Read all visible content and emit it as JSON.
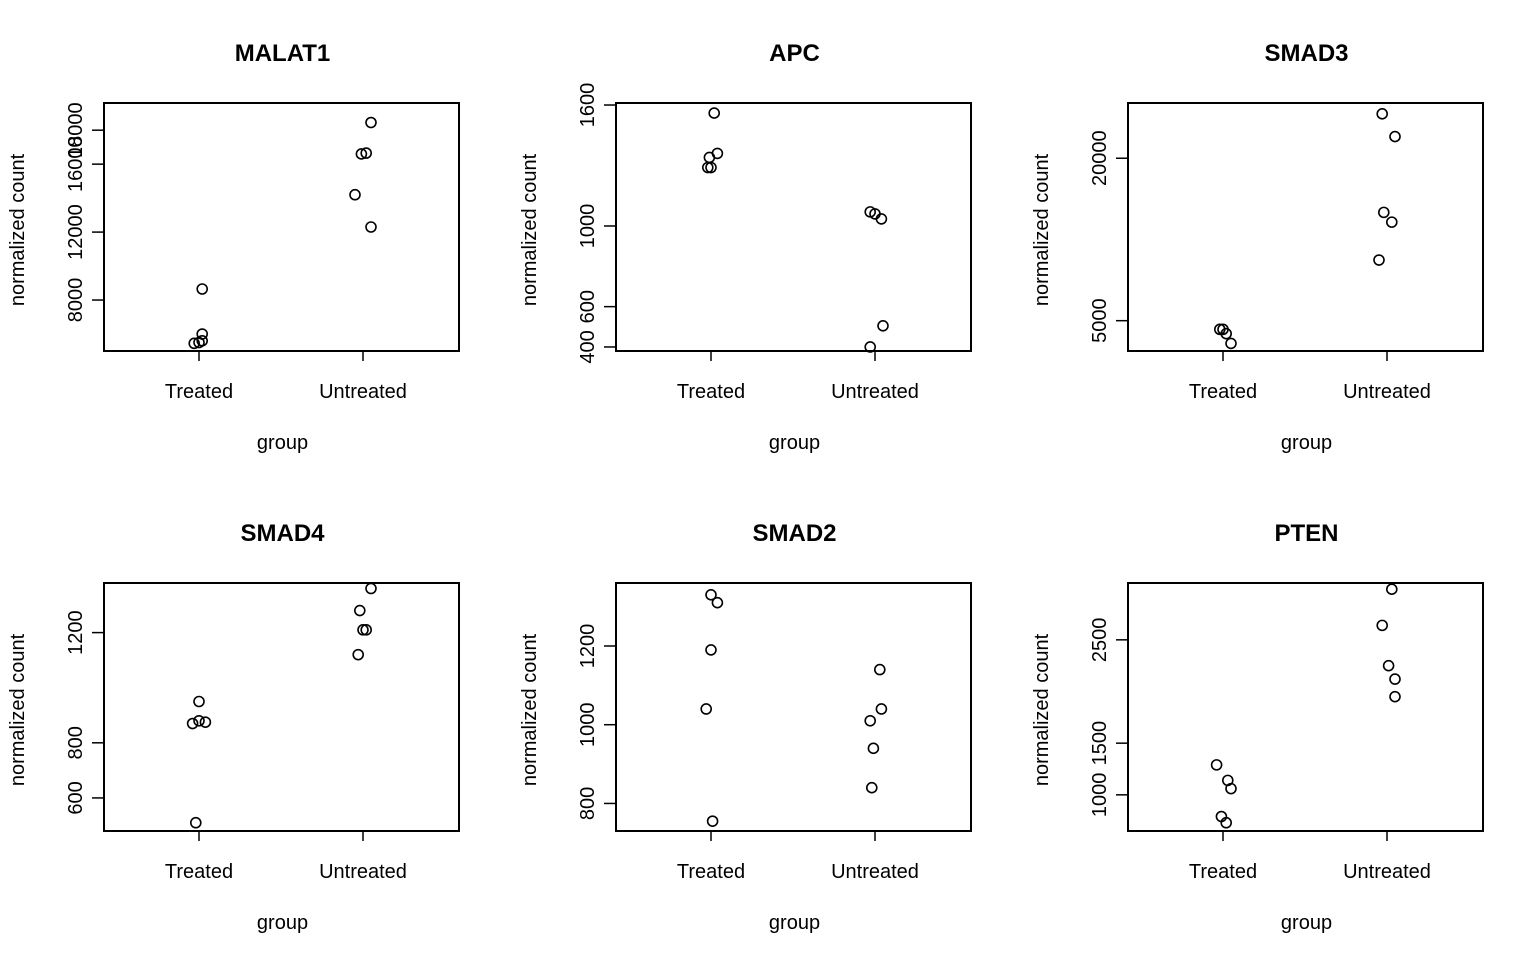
{
  "chart_data": [
    {
      "type": "scatter",
      "title": "MALAT1",
      "xlabel": "group",
      "ylabel": "normalized count",
      "categories": [
        "Treated",
        "Untreated"
      ],
      "ylim": [
        5000,
        19600
      ],
      "yticks": [
        8000,
        12000,
        16000,
        18000
      ],
      "ytick_labels": [
        "8000",
        "12000",
        "16000",
        "18000"
      ],
      "grid": false,
      "points": [
        {
          "group": "Treated",
          "jitter": -0.03,
          "y": 5450
        },
        {
          "group": "Treated",
          "jitter": 0.0,
          "y": 5500
        },
        {
          "group": "Treated",
          "jitter": 0.02,
          "y": 5600
        },
        {
          "group": "Treated",
          "jitter": 0.02,
          "y": 6000
        },
        {
          "group": "Treated",
          "jitter": 0.02,
          "y": 8650
        },
        {
          "group": "Untreated",
          "jitter": -0.05,
          "y": 14200
        },
        {
          "group": "Untreated",
          "jitter": -0.01,
          "y": 16600
        },
        {
          "group": "Untreated",
          "jitter": 0.02,
          "y": 16650
        },
        {
          "group": "Untreated",
          "jitter": 0.05,
          "y": 12300
        },
        {
          "group": "Untreated",
          "jitter": 0.05,
          "y": 18450
        }
      ]
    },
    {
      "type": "scatter",
      "title": "APC",
      "xlabel": "group",
      "ylabel": "normalized count",
      "categories": [
        "Treated",
        "Untreated"
      ],
      "ylim": [
        380,
        1610
      ],
      "yticks": [
        400,
        600,
        1000,
        1600
      ],
      "ytick_labels": [
        "400",
        "600",
        "1000",
        "1600"
      ],
      "grid": false,
      "points": [
        {
          "group": "Treated",
          "jitter": -0.02,
          "y": 1290
        },
        {
          "group": "Treated",
          "jitter": 0.0,
          "y": 1290
        },
        {
          "group": "Treated",
          "jitter": -0.01,
          "y": 1340
        },
        {
          "group": "Treated",
          "jitter": 0.04,
          "y": 1360
        },
        {
          "group": "Treated",
          "jitter": 0.02,
          "y": 1560
        },
        {
          "group": "Untreated",
          "jitter": -0.03,
          "y": 1070
        },
        {
          "group": "Untreated",
          "jitter": 0.0,
          "y": 1060
        },
        {
          "group": "Untreated",
          "jitter": 0.04,
          "y": 1035
        },
        {
          "group": "Untreated",
          "jitter": 0.05,
          "y": 505
        },
        {
          "group": "Untreated",
          "jitter": -0.03,
          "y": 400
        }
      ]
    },
    {
      "type": "scatter",
      "title": "SMAD3",
      "xlabel": "group",
      "ylabel": "normalized count",
      "categories": [
        "Treated",
        "Untreated"
      ],
      "ylim": [
        2200,
        25100
      ],
      "yticks": [
        5000,
        20000
      ],
      "ytick_labels": [
        "5000",
        "20000"
      ],
      "grid": false,
      "points": [
        {
          "group": "Treated",
          "jitter": -0.02,
          "y": 4200
        },
        {
          "group": "Treated",
          "jitter": 0.0,
          "y": 4200
        },
        {
          "group": "Treated",
          "jitter": 0.02,
          "y": 3800
        },
        {
          "group": "Treated",
          "jitter": 0.05,
          "y": 2900
        },
        {
          "group": "Untreated",
          "jitter": -0.05,
          "y": 10600
        },
        {
          "group": "Untreated",
          "jitter": -0.02,
          "y": 15000
        },
        {
          "group": "Untreated",
          "jitter": 0.03,
          "y": 14100
        },
        {
          "group": "Untreated",
          "jitter": -0.03,
          "y": 24100
        },
        {
          "group": "Untreated",
          "jitter": 0.05,
          "y": 22000
        }
      ]
    },
    {
      "type": "scatter",
      "title": "SMAD4",
      "xlabel": "group",
      "ylabel": "normalized count",
      "categories": [
        "Treated",
        "Untreated"
      ],
      "ylim": [
        480,
        1380
      ],
      "yticks": [
        600,
        800,
        1200
      ],
      "ytick_labels": [
        "600",
        "800",
        "1200"
      ],
      "grid": false,
      "points": [
        {
          "group": "Treated",
          "jitter": -0.04,
          "y": 870
        },
        {
          "group": "Treated",
          "jitter": 0.0,
          "y": 950
        },
        {
          "group": "Treated",
          "jitter": 0.0,
          "y": 880
        },
        {
          "group": "Treated",
          "jitter": 0.04,
          "y": 875
        },
        {
          "group": "Treated",
          "jitter": -0.02,
          "y": 510
        },
        {
          "group": "Untreated",
          "jitter": -0.02,
          "y": 1280
        },
        {
          "group": "Untreated",
          "jitter": 0.0,
          "y": 1210
        },
        {
          "group": "Untreated",
          "jitter": 0.02,
          "y": 1210
        },
        {
          "group": "Untreated",
          "jitter": -0.03,
          "y": 1120
        },
        {
          "group": "Untreated",
          "jitter": 0.05,
          "y": 1360
        }
      ]
    },
    {
      "type": "scatter",
      "title": "SMAD2",
      "xlabel": "group",
      "ylabel": "normalized count",
      "categories": [
        "Treated",
        "Untreated"
      ],
      "ylim": [
        730,
        1360
      ],
      "yticks": [
        800,
        1000,
        1200
      ],
      "ytick_labels": [
        "800",
        "1000",
        "1200"
      ],
      "grid": false,
      "points": [
        {
          "group": "Treated",
          "jitter": 0.0,
          "y": 1330
        },
        {
          "group": "Treated",
          "jitter": 0.04,
          "y": 1310
        },
        {
          "group": "Treated",
          "jitter": 0.0,
          "y": 1190
        },
        {
          "group": "Treated",
          "jitter": -0.03,
          "y": 1040
        },
        {
          "group": "Treated",
          "jitter": 0.01,
          "y": 755
        },
        {
          "group": "Untreated",
          "jitter": 0.03,
          "y": 1140
        },
        {
          "group": "Untreated",
          "jitter": 0.04,
          "y": 1040
        },
        {
          "group": "Untreated",
          "jitter": -0.03,
          "y": 1010
        },
        {
          "group": "Untreated",
          "jitter": -0.01,
          "y": 940
        },
        {
          "group": "Untreated",
          "jitter": -0.02,
          "y": 840
        }
      ]
    },
    {
      "type": "scatter",
      "title": "PTEN",
      "xlabel": "group",
      "ylabel": "normalized count",
      "categories": [
        "Treated",
        "Untreated"
      ],
      "ylim": [
        650,
        3050
      ],
      "yticks": [
        1000,
        1500,
        2500
      ],
      "ytick_labels": [
        "1000",
        "1500",
        "2500"
      ],
      "grid": false,
      "points": [
        {
          "group": "Treated",
          "jitter": -0.04,
          "y": 1290
        },
        {
          "group": "Treated",
          "jitter": 0.03,
          "y": 1140
        },
        {
          "group": "Treated",
          "jitter": 0.05,
          "y": 1060
        },
        {
          "group": "Treated",
          "jitter": -0.01,
          "y": 790
        },
        {
          "group": "Treated",
          "jitter": 0.02,
          "y": 730
        },
        {
          "group": "Untreated",
          "jitter": 0.03,
          "y": 2990
        },
        {
          "group": "Untreated",
          "jitter": -0.03,
          "y": 2640
        },
        {
          "group": "Untreated",
          "jitter": 0.01,
          "y": 2250
        },
        {
          "group": "Untreated",
          "jitter": 0.05,
          "y": 2120
        },
        {
          "group": "Untreated",
          "jitter": 0.05,
          "y": 1950
        }
      ]
    }
  ]
}
